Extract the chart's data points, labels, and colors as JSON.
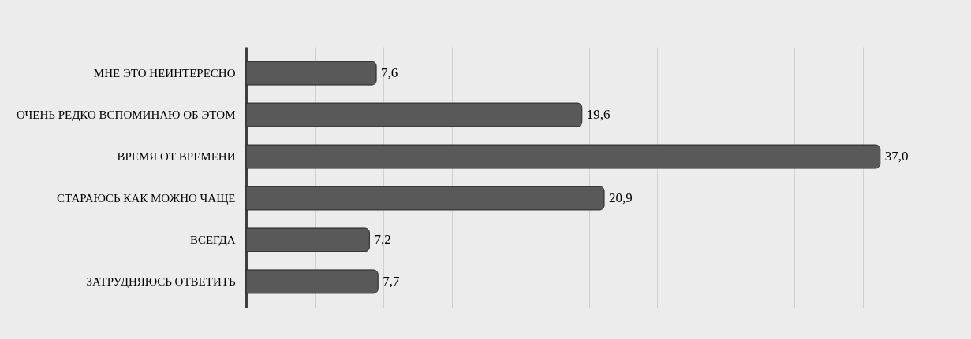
{
  "chart_data": {
    "type": "bar",
    "orientation": "horizontal",
    "categories": [
      "МНЕ ЭТО НЕИНТЕРЕСНО",
      "ОЧЕНЬ РЕДКО ВСПОМИНАЮ ОБ ЭТОМ",
      "ВРЕМЯ ОТ ВРЕМЕНИ",
      "СТАРАЮСЬ КАК МОЖНО ЧАЩЕ",
      "ВСЕГДА",
      "ЗАТРУДНЯЮСЬ ОТВЕТИТЬ"
    ],
    "values": [
      7.6,
      19.6,
      37.0,
      20.9,
      7.2,
      7.7
    ],
    "value_labels": [
      "7,6",
      "19,6",
      "37,0",
      "20,9",
      "7,2",
      "7,7"
    ],
    "color": "#595959",
    "xlim": [
      0,
      40
    ],
    "xticks": [
      {
        "value": 0,
        "label": null
      },
      {
        "value": 4,
        "label": null
      },
      {
        "value": 8,
        "label": null
      },
      {
        "value": 12,
        "label": null
      },
      {
        "value": 16,
        "label": null
      },
      {
        "value": 20,
        "label": null
      },
      {
        "value": 24,
        "label": null
      },
      {
        "value": 28,
        "label": null
      },
      {
        "value": 32,
        "label": null
      },
      {
        "value": 36,
        "label": null
      },
      {
        "value": 40,
        "label": null
      }
    ],
    "grid": "x",
    "tick_labels": "y"
  }
}
